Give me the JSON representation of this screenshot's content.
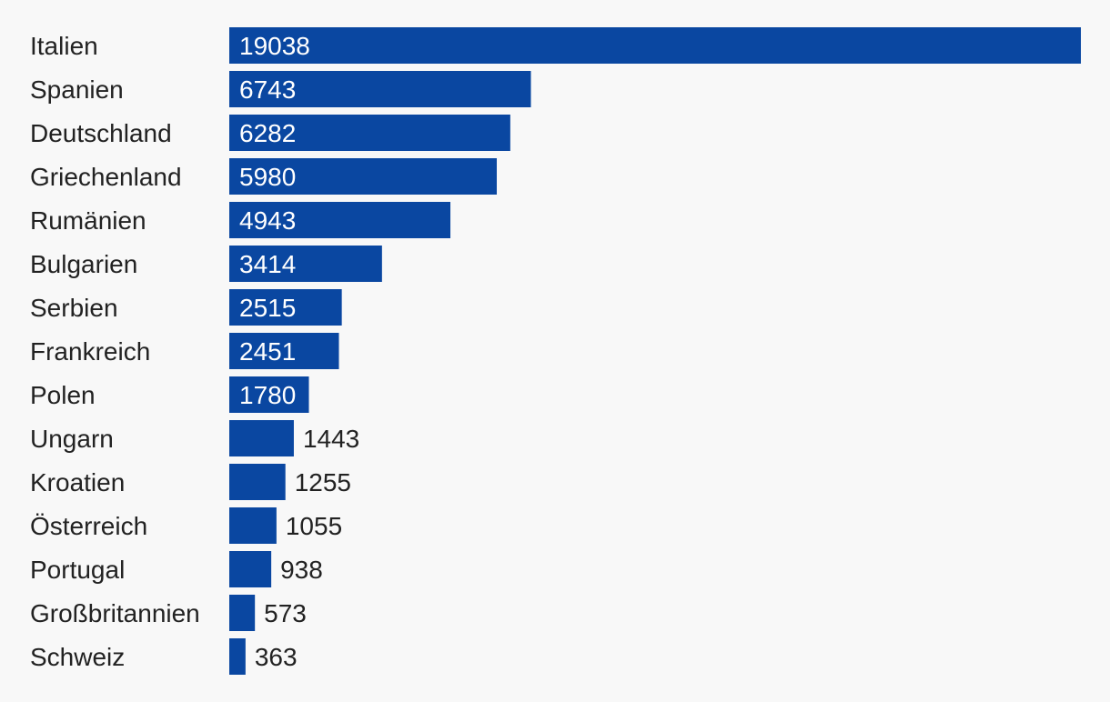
{
  "chart_data": {
    "type": "bar",
    "orientation": "horizontal",
    "categories": [
      "Italien",
      "Spanien",
      "Deutschland",
      "Griechenland",
      "Rumänien",
      "Bulgarien",
      "Serbien",
      "Frankreich",
      "Polen",
      "Ungarn",
      "Kroatien",
      "Österreich",
      "Portugal",
      "Großbritannien",
      "Schweiz"
    ],
    "values": [
      19038,
      6743,
      6282,
      5980,
      4943,
      3414,
      2515,
      2451,
      1780,
      1443,
      1255,
      1055,
      938,
      573,
      363
    ],
    "value_labels": [
      "19038",
      "6743",
      "6282",
      "5980",
      "4943",
      "3414",
      "2515",
      "2451",
      "1780",
      "1443",
      "1255",
      "1055",
      "938",
      "573",
      "363"
    ],
    "xlim": [
      0,
      19038
    ],
    "grid": false,
    "legend": "none",
    "bar_color": "#0a47a1",
    "label_color_inside": "#ffffff",
    "label_color_outside": "#222222"
  }
}
